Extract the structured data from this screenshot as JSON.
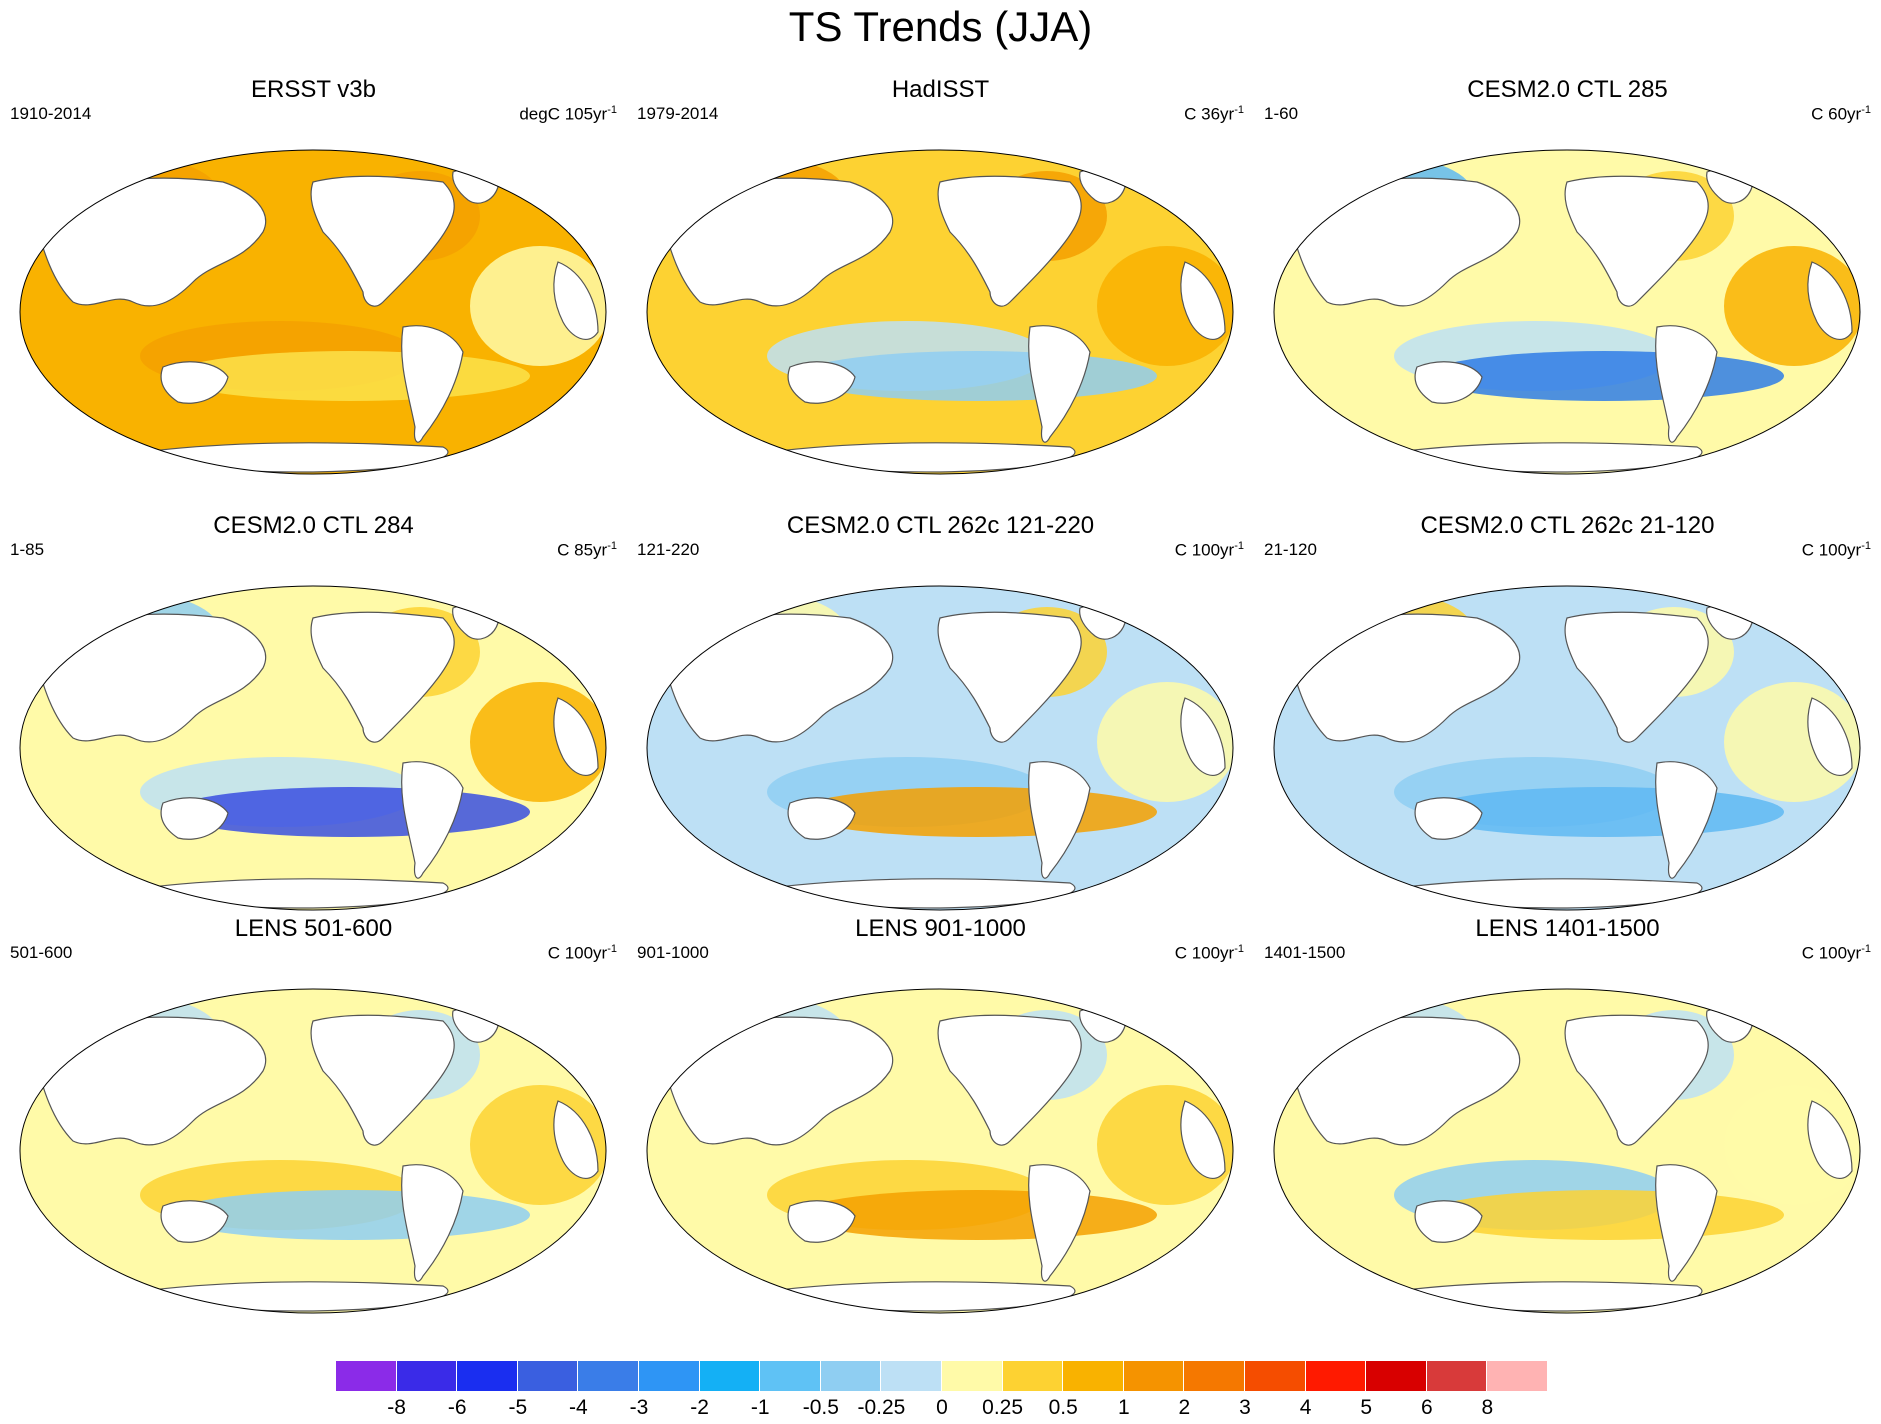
{
  "title": "TS Trends (JJA)",
  "colors": {
    "land": "#ffffff",
    "coast": "#555555",
    "ocean_frame": "#000000"
  },
  "panels": [
    {
      "title": "ERSST v3b",
      "period": "1910-2014",
      "units": "degC 105yr",
      "units_sup": "-1",
      "base": "#F9B200",
      "patches": [
        "#F5A000",
        "#F5A000",
        "#F5A000",
        "#FCE24A",
        "#FFFAA8"
      ]
    },
    {
      "title": "HadISST",
      "period": "1979-2014",
      "units": "C 36yr",
      "units_sup": "-1",
      "base": "#FDD232",
      "patches": [
        "#F5A000",
        "#BDE0F5",
        "#F5A000",
        "#8FCEF2",
        "#F9B200"
      ]
    },
    {
      "title": "CESM2.0 CTL 285",
      "period": "1-60",
      "units": "C 60yr",
      "units_sup": "-1",
      "base": "#FFFAA8",
      "patches": [
        "#5FB8F2",
        "#BDE0F5",
        "#FDD232",
        "#2F7DE6",
        "#F9B200"
      ]
    },
    {
      "title": "CESM2.0 CTL 284",
      "period": "1-85",
      "units": "C 85yr",
      "units_sup": "-1",
      "base": "#FFFAA8",
      "patches": [
        "#8FCEF2",
        "#BDE0F5",
        "#FDD232",
        "#3A4FE0",
        "#F9B200"
      ]
    },
    {
      "title": "CESM2.0 CTL 262c 121-220",
      "period": "121-220",
      "units": "C 100yr",
      "units_sup": "-1",
      "base": "#BDE0F5",
      "patches": [
        "#FFFAA8",
        "#8FCEF2",
        "#FDD232",
        "#F5A000",
        "#FFFAA8"
      ]
    },
    {
      "title": "CESM2.0 CTL 262c 21-120",
      "period": "21-120",
      "units": "C 100yr",
      "units_sup": "-1",
      "base": "#BDE0F5",
      "patches": [
        "#FDD232",
        "#8FCEF2",
        "#FFFAA8",
        "#5FB8F2",
        "#FFFAA8"
      ]
    },
    {
      "title": "LENS 501-600",
      "period": "501-600",
      "units": "C 100yr",
      "units_sup": "-1",
      "base": "#FFFAA8",
      "patches": [
        "#BDE0F5",
        "#FDD232",
        "#BDE0F5",
        "#8FCEF2",
        "#FDD232"
      ]
    },
    {
      "title": "LENS 901-1000",
      "period": "901-1000",
      "units": "C 100yr",
      "units_sup": "-1",
      "base": "#FFFAA8",
      "patches": [
        "#BDE0F5",
        "#FDD232",
        "#BDE0F5",
        "#F5A000",
        "#FDD232"
      ]
    },
    {
      "title": "LENS 1401-1500",
      "period": "1401-1500",
      "units": "C 100yr",
      "units_sup": "-1",
      "base": "#FFFAA8",
      "patches": [
        "#BDE0F5",
        "#8FCEF2",
        "#BDE0F5",
        "#FDD232",
        "#FFFAA8"
      ]
    }
  ],
  "colorbar": {
    "colors": [
      "#8B2BE8",
      "#3A2BE8",
      "#1A2EF0",
      "#3A5FE0",
      "#3A7DE8",
      "#2E95F5",
      "#14B0F5",
      "#5FC2F5",
      "#8FCEF2",
      "#BDE0F5",
      "#FFFAA8",
      "#FDD232",
      "#F9B200",
      "#F59300",
      "#F57800",
      "#F54D00",
      "#FF1A00",
      "#D80000",
      "#D83A3A",
      "#FFB3B3"
    ],
    "labels": [
      "-8",
      "-6",
      "-5",
      "-4",
      "-3",
      "-2",
      "-1",
      "-0.5",
      "-0.25",
      "0",
      "0.25",
      "0.5",
      "1",
      "2",
      "3",
      "4",
      "5",
      "6",
      "8"
    ]
  }
}
